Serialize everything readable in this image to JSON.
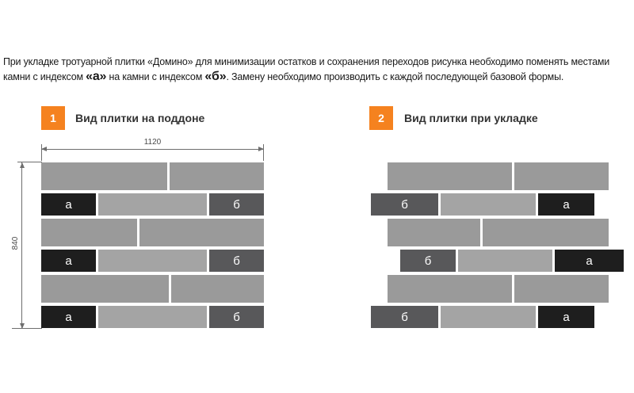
{
  "intro": {
    "line1": "При укладке тротуарной плитки «Домино» для минимизации остатков и сохранения переходов рисунка необходимо поменять местами",
    "line2_part1": "камни с индексом ",
    "index_a": "«а»",
    "line2_part2": " на камни с индексом ",
    "index_b": "«б»",
    "line2_part3": ". Замену необходимо производить с каждой последующей базовой формы."
  },
  "colors": {
    "accent_orange": "#F5821F",
    "dimension_line": "#6e6e6e",
    "tiles": {
      "gray": "#9A9A9A",
      "gray_light": "#A4A4A4",
      "a": "#1E1E1E",
      "b": "#58585A"
    }
  },
  "diagram1": {
    "badge": "1",
    "title": "Вид плитки на поддоне",
    "dim_width_label": "1120",
    "dim_height_label": "840",
    "rows": [
      {
        "h": 35,
        "offset": 0,
        "tiles": [
          {
            "t": "gray",
            "w": 159
          },
          {
            "t": "gray",
            "w": 119
          }
        ]
      },
      {
        "h": 28,
        "offset": 0,
        "tiles": [
          {
            "t": "a",
            "w": 69,
            "label": "а"
          },
          {
            "t": "gray_light",
            "w": 137
          },
          {
            "t": "b",
            "w": 69,
            "label": "б"
          }
        ]
      },
      {
        "h": 35,
        "offset": 0,
        "tiles": [
          {
            "t": "gray",
            "w": 121
          },
          {
            "t": "gray",
            "w": 157
          }
        ]
      },
      {
        "h": 28,
        "offset": 0,
        "tiles": [
          {
            "t": "a",
            "w": 69,
            "label": "а"
          },
          {
            "t": "gray_light",
            "w": 137
          },
          {
            "t": "b",
            "w": 69,
            "label": "б"
          }
        ]
      },
      {
        "h": 35,
        "offset": 0,
        "tiles": [
          {
            "t": "gray",
            "w": 161
          },
          {
            "t": "gray",
            "w": 117
          }
        ]
      },
      {
        "h": 28,
        "offset": 0,
        "tiles": [
          {
            "t": "a",
            "w": 69,
            "label": "а"
          },
          {
            "t": "gray_light",
            "w": 137
          },
          {
            "t": "b",
            "w": 69,
            "label": "б"
          }
        ]
      }
    ]
  },
  "diagram2": {
    "badge": "2",
    "title": "Вид плитки при укладке",
    "rows": [
      {
        "h": 35,
        "offset": 21,
        "tiles": [
          {
            "t": "gray",
            "w": 157
          },
          {
            "t": "gray",
            "w": 119
          }
        ]
      },
      {
        "h": 28,
        "offset": 0,
        "tiles": [
          {
            "t": "b",
            "w": 85,
            "label": "б"
          },
          {
            "t": "gray_light",
            "w": 120
          },
          {
            "t": "a",
            "w": 71,
            "label": "а"
          }
        ]
      },
      {
        "h": 35,
        "offset": 21,
        "tiles": [
          {
            "t": "gray",
            "w": 117
          },
          {
            "t": "gray",
            "w": 159
          }
        ]
      },
      {
        "h": 28,
        "offset": 37,
        "tiles": [
          {
            "t": "b",
            "w": 70,
            "label": "б"
          },
          {
            "t": "gray_light",
            "w": 119
          },
          {
            "t": "a",
            "w": 87,
            "label": "а"
          }
        ]
      },
      {
        "h": 35,
        "offset": 21,
        "tiles": [
          {
            "t": "gray",
            "w": 157
          },
          {
            "t": "gray",
            "w": 119
          }
        ]
      },
      {
        "h": 28,
        "offset": 0,
        "tiles": [
          {
            "t": "b",
            "w": 85,
            "label": "б"
          },
          {
            "t": "gray_light",
            "w": 120
          },
          {
            "t": "a",
            "w": 71,
            "label": "а"
          }
        ]
      }
    ]
  }
}
